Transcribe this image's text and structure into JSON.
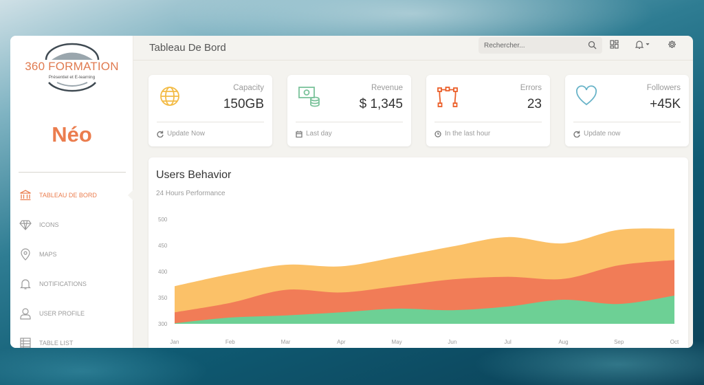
{
  "logo": {
    "title": "360 FORMATION",
    "subtitle": "Présentiel et E-learning"
  },
  "brand": "Néo",
  "nav": [
    {
      "label": "TABLEAU DE BORD",
      "icon": "bank-icon",
      "active": true
    },
    {
      "label": "ICONS",
      "icon": "diamond-icon",
      "active": false
    },
    {
      "label": "MAPS",
      "icon": "map-pin-icon",
      "active": false
    },
    {
      "label": "NOTIFICATIONS",
      "icon": "bell-icon",
      "active": false
    },
    {
      "label": "USER PROFILE",
      "icon": "user-icon",
      "active": false
    },
    {
      "label": "TABLE LIST",
      "icon": "table-icon",
      "active": false
    }
  ],
  "topbar": {
    "title": "Tableau De Bord",
    "search_placeholder": "Rechercher...",
    "icons": [
      "search-icon",
      "dashboard-icon",
      "bell-icon",
      "gear-icon"
    ]
  },
  "stats": [
    {
      "label": "Capacity",
      "value": "150GB",
      "footer": "Update Now",
      "icon": "globe-icon",
      "footer_icon": "refresh-icon",
      "color": "#f3bb45"
    },
    {
      "label": "Revenue",
      "value": "$ 1,345",
      "footer": "Last day",
      "icon": "money-icon",
      "footer_icon": "calendar-icon",
      "color": "#7ac29a"
    },
    {
      "label": "Errors",
      "value": "23",
      "footer": "In the last hour",
      "icon": "vector-icon",
      "footer_icon": "clock-icon",
      "color": "#eb5e28"
    },
    {
      "label": "Followers",
      "value": "+45K",
      "footer": "Update now",
      "icon": "heart-icon",
      "footer_icon": "refresh-icon",
      "color": "#68b3c8"
    }
  ],
  "chart": {
    "title": "Users Behavior",
    "subtitle": "24 Hours Performance"
  },
  "chart_data": {
    "type": "area",
    "categories": [
      "Jan",
      "Feb",
      "Mar",
      "Apr",
      "May",
      "Jun",
      "Jul",
      "Aug",
      "Sep",
      "Oct"
    ],
    "ylim": [
      300,
      500
    ],
    "yticks": [
      300,
      350,
      400,
      450,
      500
    ],
    "grid": false,
    "series": [
      {
        "values": [
          372,
          395,
          413,
          410,
          428,
          448,
          466,
          454,
          480,
          482
        ],
        "color": "#fbc168"
      },
      {
        "values": [
          322,
          340,
          365,
          360,
          372,
          385,
          390,
          386,
          412,
          422
        ],
        "color": "#f17c57"
      },
      {
        "values": [
          301,
          312,
          316,
          322,
          329,
          326,
          333,
          346,
          338,
          354
        ],
        "color": "#6dd095"
      }
    ]
  }
}
